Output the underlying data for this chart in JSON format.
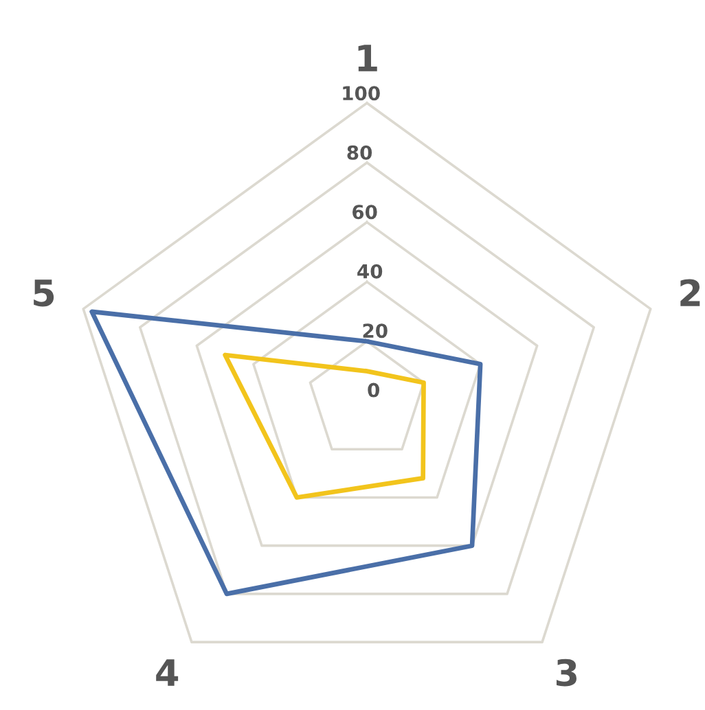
{
  "chart_data": {
    "type": "radar",
    "categories": [
      "1",
      "2",
      "3",
      "4",
      "5"
    ],
    "series": [
      {
        "color": "#4a6fa8",
        "values": [
          20,
          40,
          60,
          80,
          97
        ]
      },
      {
        "color": "#f2c41c",
        "values": [
          10,
          20,
          32,
          40,
          50
        ]
      }
    ],
    "ylim": [
      0,
      100
    ],
    "yticks": [
      0,
      20,
      40,
      60,
      80,
      100
    ],
    "grid": true
  }
}
